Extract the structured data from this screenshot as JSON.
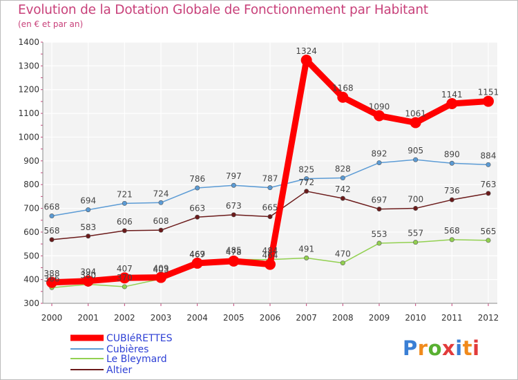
{
  "title": "Evolution de la Dotation Globale de Fonctionnement par Habitant",
  "subtitle": "(en € et par an)",
  "logo": {
    "text": "Proxiti",
    "colors": [
      "#3a7fd5",
      "#f08a1c",
      "#58b031",
      "#e23b3b",
      "#3a7fd5",
      "#f08a1c",
      "#e23b3b"
    ]
  },
  "chart_data": {
    "type": "line",
    "x": [
      "2000",
      "2001",
      "2002",
      "2003",
      "2004",
      "2005",
      "2006",
      "2007",
      "2008",
      "2009",
      "2010",
      "2011",
      "2012"
    ],
    "ylim": [
      300,
      1400
    ],
    "yticks": [
      "300",
      "400",
      "500",
      "600",
      "700",
      "800",
      "900",
      "1000",
      "1100",
      "1200",
      "1300",
      "1400"
    ],
    "grid": true,
    "legend_position": "bottom-left",
    "series": [
      {
        "name": "Cubières",
        "color": "#5b9bd5",
        "values": [
          668,
          694,
          721,
          724,
          786,
          797,
          787,
          825,
          828,
          892,
          905,
          890,
          884
        ]
      },
      {
        "name": "Altier",
        "color": "#6b1a1a",
        "values": [
          568,
          583,
          606,
          608,
          663,
          673,
          665,
          772,
          742,
          697,
          700,
          736,
          763
        ]
      },
      {
        "name": "Le Bleymard",
        "color": "#92d050",
        "values": [
          366,
          380,
          370,
          403,
          467,
          485,
          484,
          491,
          470,
          553,
          557,
          568,
          565
        ]
      },
      {
        "name": "CUBIéRETTES",
        "color": "#ff0000",
        "values": [
          388,
          394,
          407,
          409,
          469,
          478,
          464,
          1324,
          1168,
          1090,
          1061,
          1141,
          1151
        ]
      }
    ],
    "data_labels": [
      [
        "668",
        "694",
        "721",
        "724",
        "786",
        "797",
        "787",
        "825",
        "828",
        "892",
        "905",
        "890",
        "884"
      ],
      [
        "568",
        "583",
        "606",
        "608",
        "663",
        "673",
        "665",
        "772",
        "742",
        "697",
        "700",
        "736",
        "763"
      ],
      [
        "366",
        "380",
        "370",
        "403",
        "467",
        "485",
        "484",
        "491",
        "470",
        "553",
        "557",
        "568",
        "565"
      ],
      [
        "388",
        "394",
        "407",
        "409",
        "469",
        "478",
        "464",
        "1324",
        "1168",
        "1090",
        "1061",
        "1141",
        "1151"
      ]
    ],
    "legend": [
      "CUBIéRETTES",
      "Cubières",
      "Le Bleymard",
      "Altier"
    ],
    "legend_colors": [
      "#ff0000",
      "#5b9bd5",
      "#92d050",
      "#6b1a1a"
    ]
  }
}
